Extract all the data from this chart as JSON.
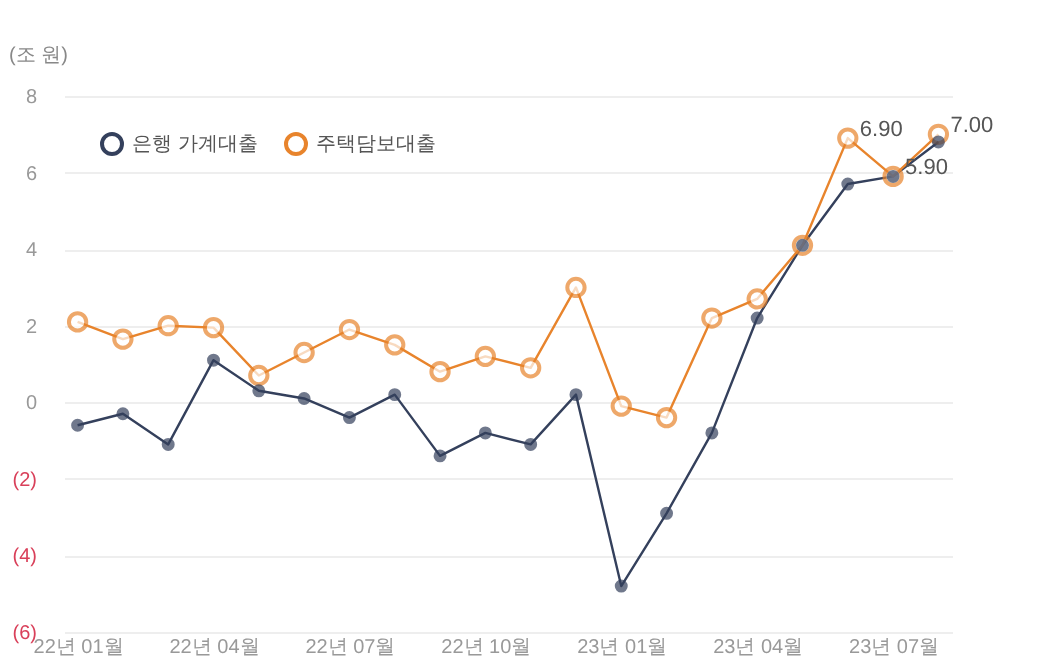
{
  "chart_data": {
    "type": "line",
    "ylabel": "(조 원)",
    "categories": [
      "22년 01월",
      null,
      null,
      "22년 04월",
      null,
      null,
      "22년 07월",
      null,
      null,
      "22년 10월",
      null,
      null,
      "23년 01월",
      null,
      null,
      "23년 04월",
      null,
      null,
      "23년 07월",
      null
    ],
    "series": [
      {
        "name": "은행 가계대출",
        "color": "#34405c",
        "values": [
          -0.6,
          -0.3,
          -1.1,
          1.1,
          0.3,
          0.1,
          -0.4,
          0.2,
          -1.4,
          -0.8,
          -1.1,
          0.2,
          -4.8,
          -2.9,
          -0.8,
          2.2,
          4.1,
          5.7,
          5.9,
          6.8
        ]
      },
      {
        "name": "주택담보대출",
        "color": "#e8842c",
        "values": [
          2.1,
          1.65,
          2.0,
          1.95,
          0.7,
          1.3,
          1.9,
          1.5,
          0.8,
          1.2,
          0.9,
          3.0,
          -0.1,
          -0.4,
          2.2,
          2.7,
          4.1,
          6.9,
          5.9,
          7.0
        ],
        "value_labels": [
          null,
          null,
          null,
          null,
          null,
          null,
          null,
          null,
          null,
          null,
          null,
          null,
          null,
          null,
          null,
          null,
          null,
          "6.90",
          "5.90",
          "7.00"
        ]
      }
    ],
    "ylim": [
      -6,
      8
    ],
    "yticks": [
      {
        "value": -6,
        "label": "(6)"
      },
      {
        "value": -4,
        "label": "(4)"
      },
      {
        "value": -2,
        "label": "(2)"
      },
      0,
      2,
      4,
      6,
      8
    ],
    "grid": "y",
    "legend": "top left",
    "marker": "circle"
  }
}
